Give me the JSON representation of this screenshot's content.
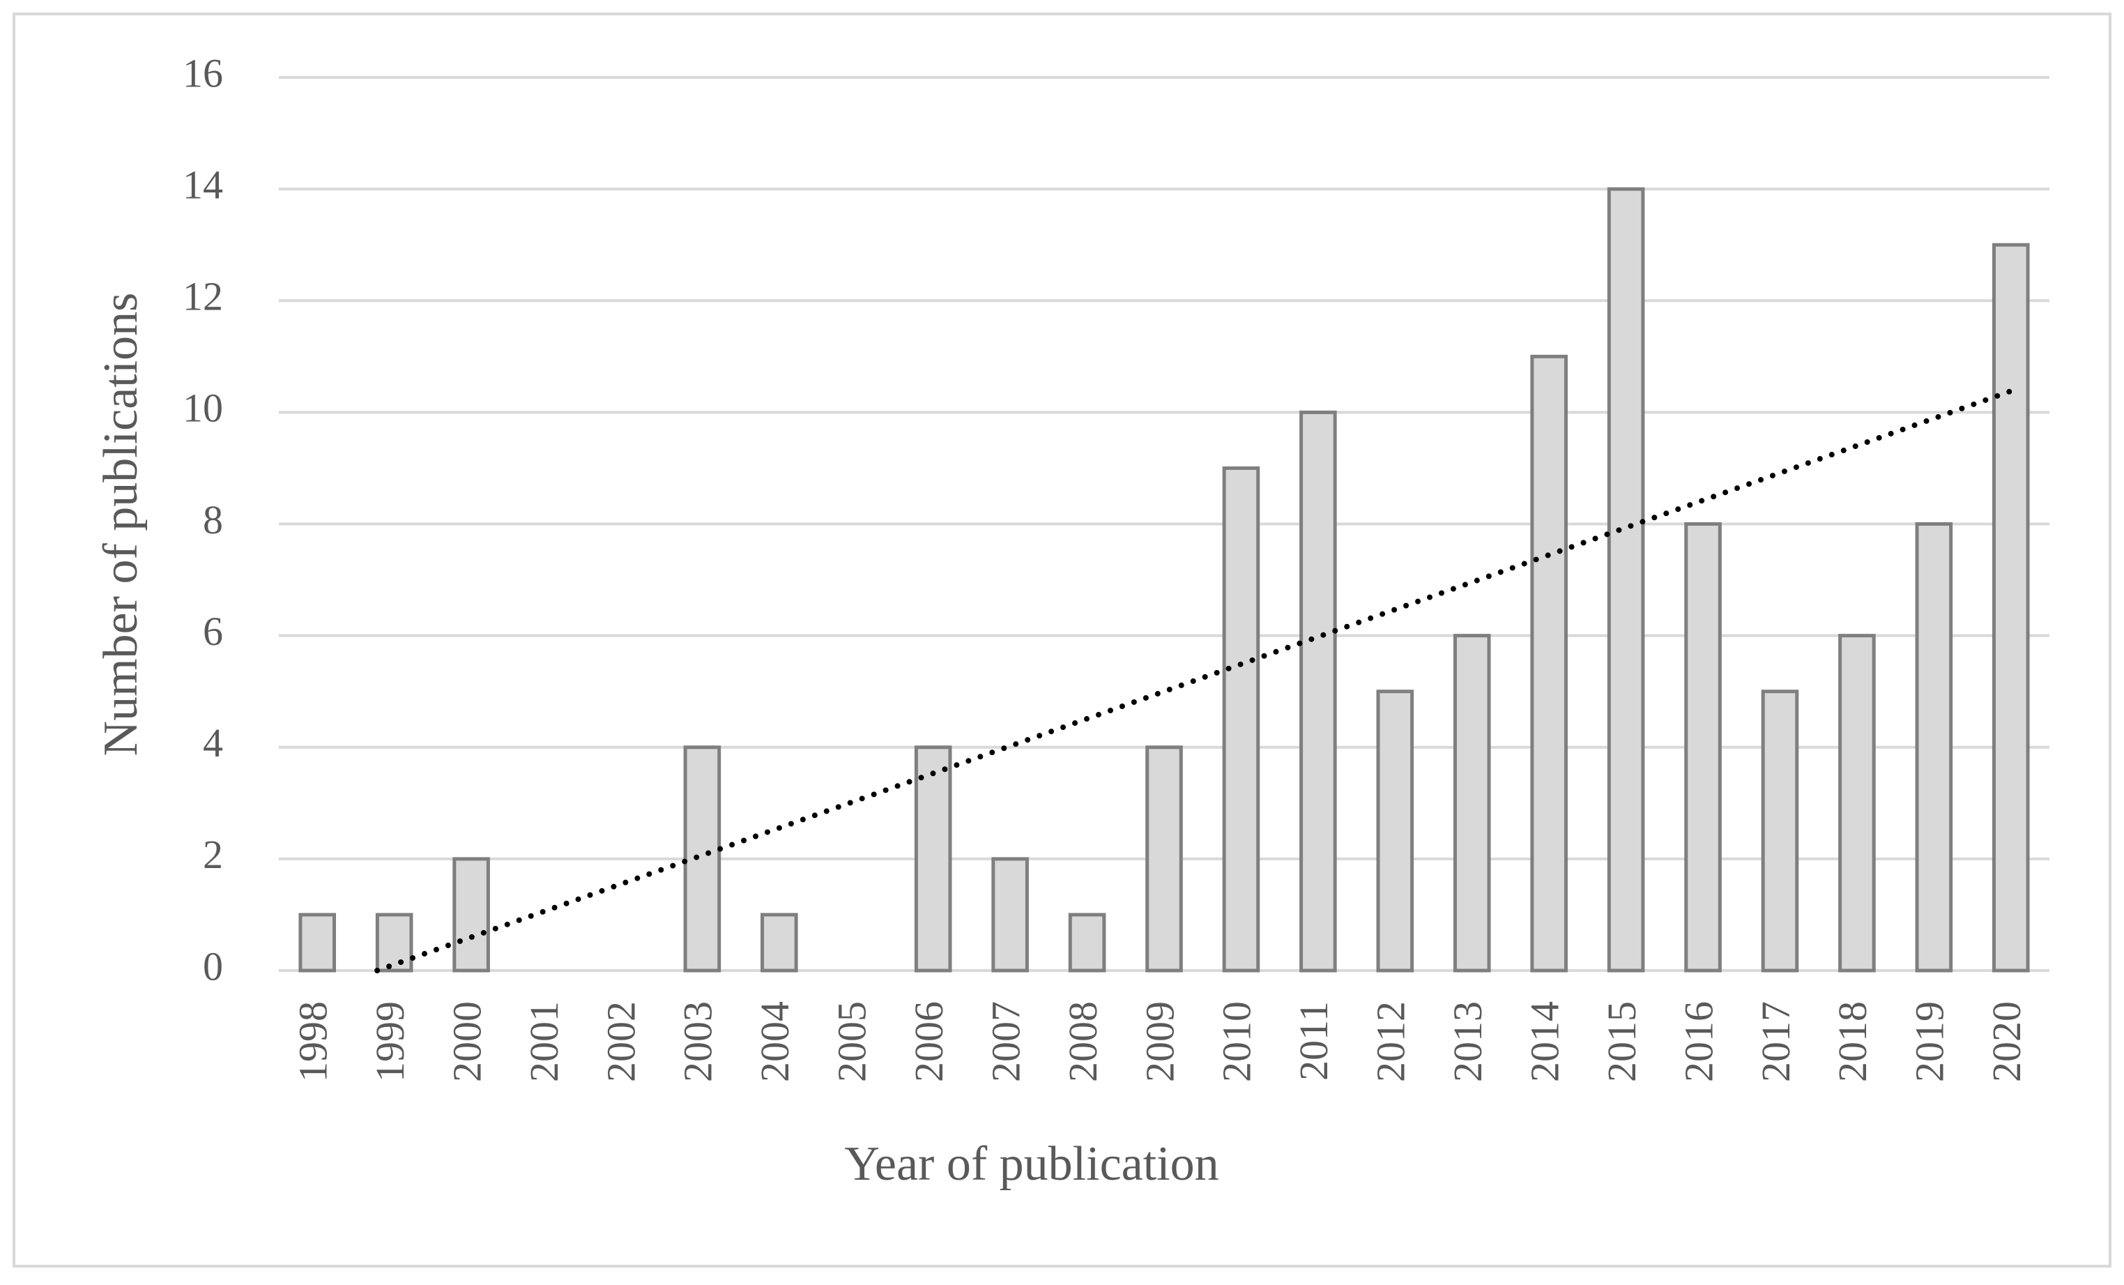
{
  "chart_data": {
    "type": "bar",
    "x_label": "Year of publication",
    "y_label": "Number of publications",
    "categories": [
      "1998",
      "1999",
      "2000",
      "2001",
      "2002",
      "2003",
      "2004",
      "2005",
      "2006",
      "2007",
      "2008",
      "2009",
      "2010",
      "2011",
      "2012",
      "2013",
      "2014",
      "2015",
      "2016",
      "2017",
      "2018",
      "2019",
      "2020"
    ],
    "values": [
      1,
      1,
      2,
      0,
      0,
      4,
      1,
      0,
      4,
      2,
      1,
      4,
      9,
      10,
      5,
      6,
      11,
      14,
      8,
      5,
      6,
      8,
      13
    ],
    "color": "#d9d9d9",
    "edge_color": "#7f7f7f",
    "ylim": [
      0,
      16
    ],
    "yticks": [
      0,
      2,
      4,
      6,
      8,
      10,
      12,
      14,
      16
    ],
    "grid": true,
    "trendline": "linear",
    "trendline_color": "#000000"
  }
}
